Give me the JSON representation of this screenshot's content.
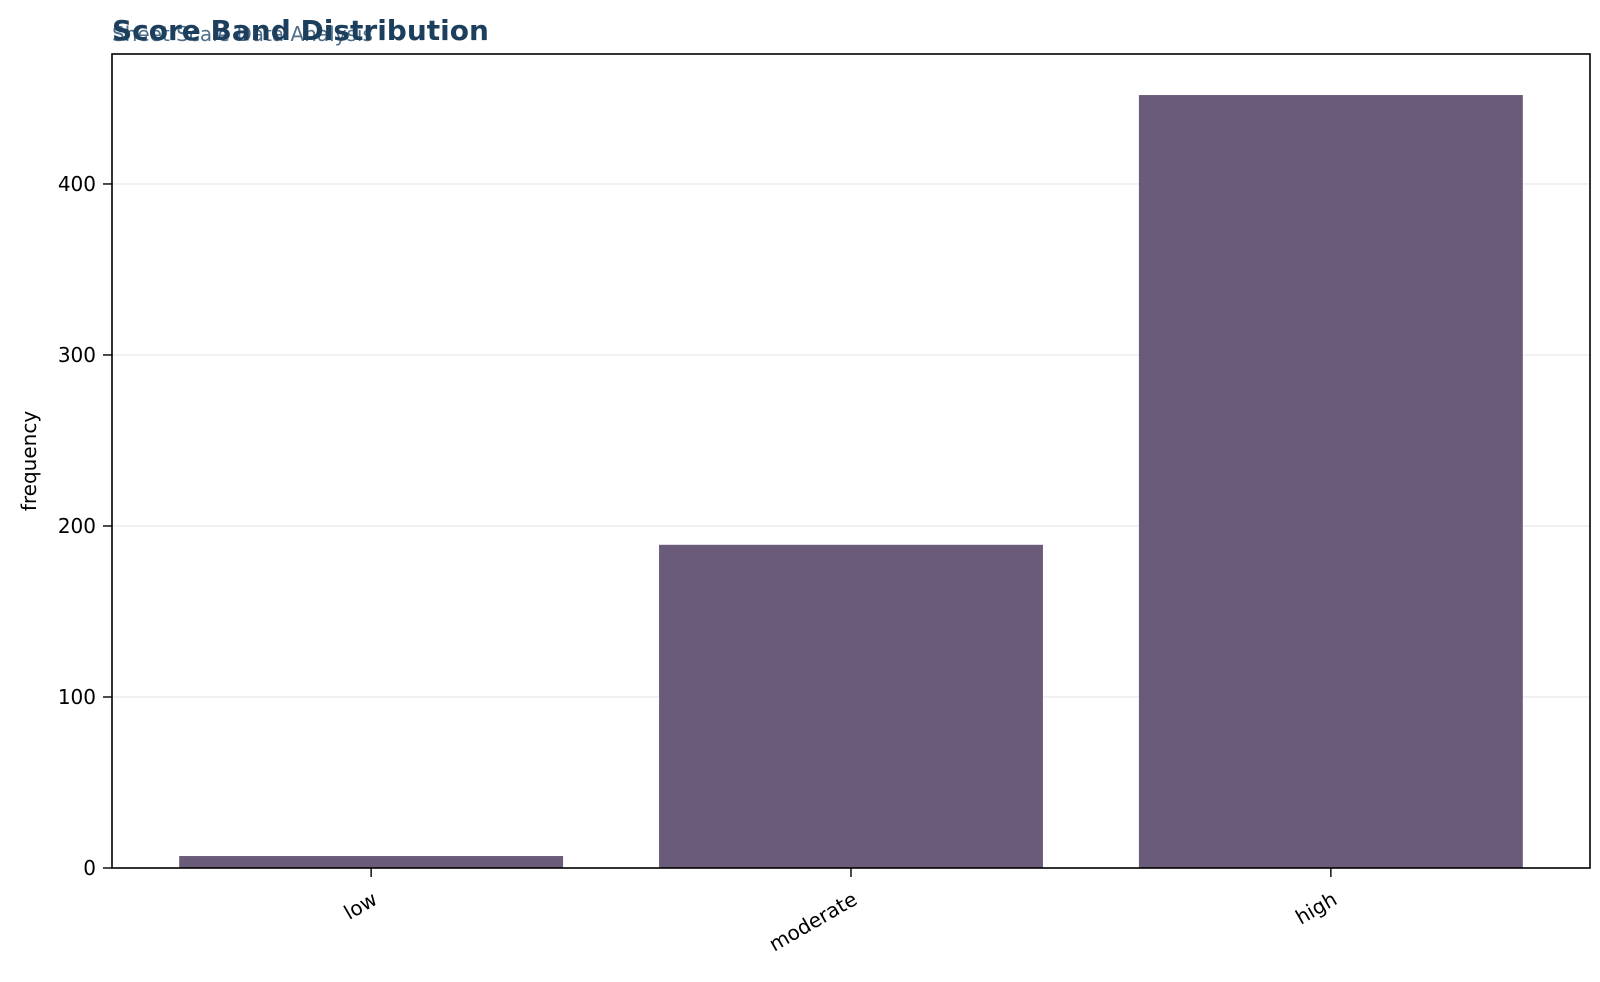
{
  "chart_data": {
    "type": "bar",
    "title": "Score Band Distribution",
    "subtitle": "Sheet Scale Data Analysis",
    "xlabel": "",
    "ylabel": "frequency",
    "categories": [
      "low",
      "moderate",
      "high"
    ],
    "values": [
      7,
      189,
      452
    ],
    "ylim": [
      0,
      476
    ],
    "yticks": [
      0,
      100,
      200,
      300,
      400
    ],
    "grid": "horizontal",
    "legend": "none"
  },
  "colors": {
    "bar": "#6b5b7b",
    "title": "#1c3f5e",
    "subtitle": "#4f6f8a",
    "grid": "#ebebeb",
    "axis": "#000000"
  }
}
